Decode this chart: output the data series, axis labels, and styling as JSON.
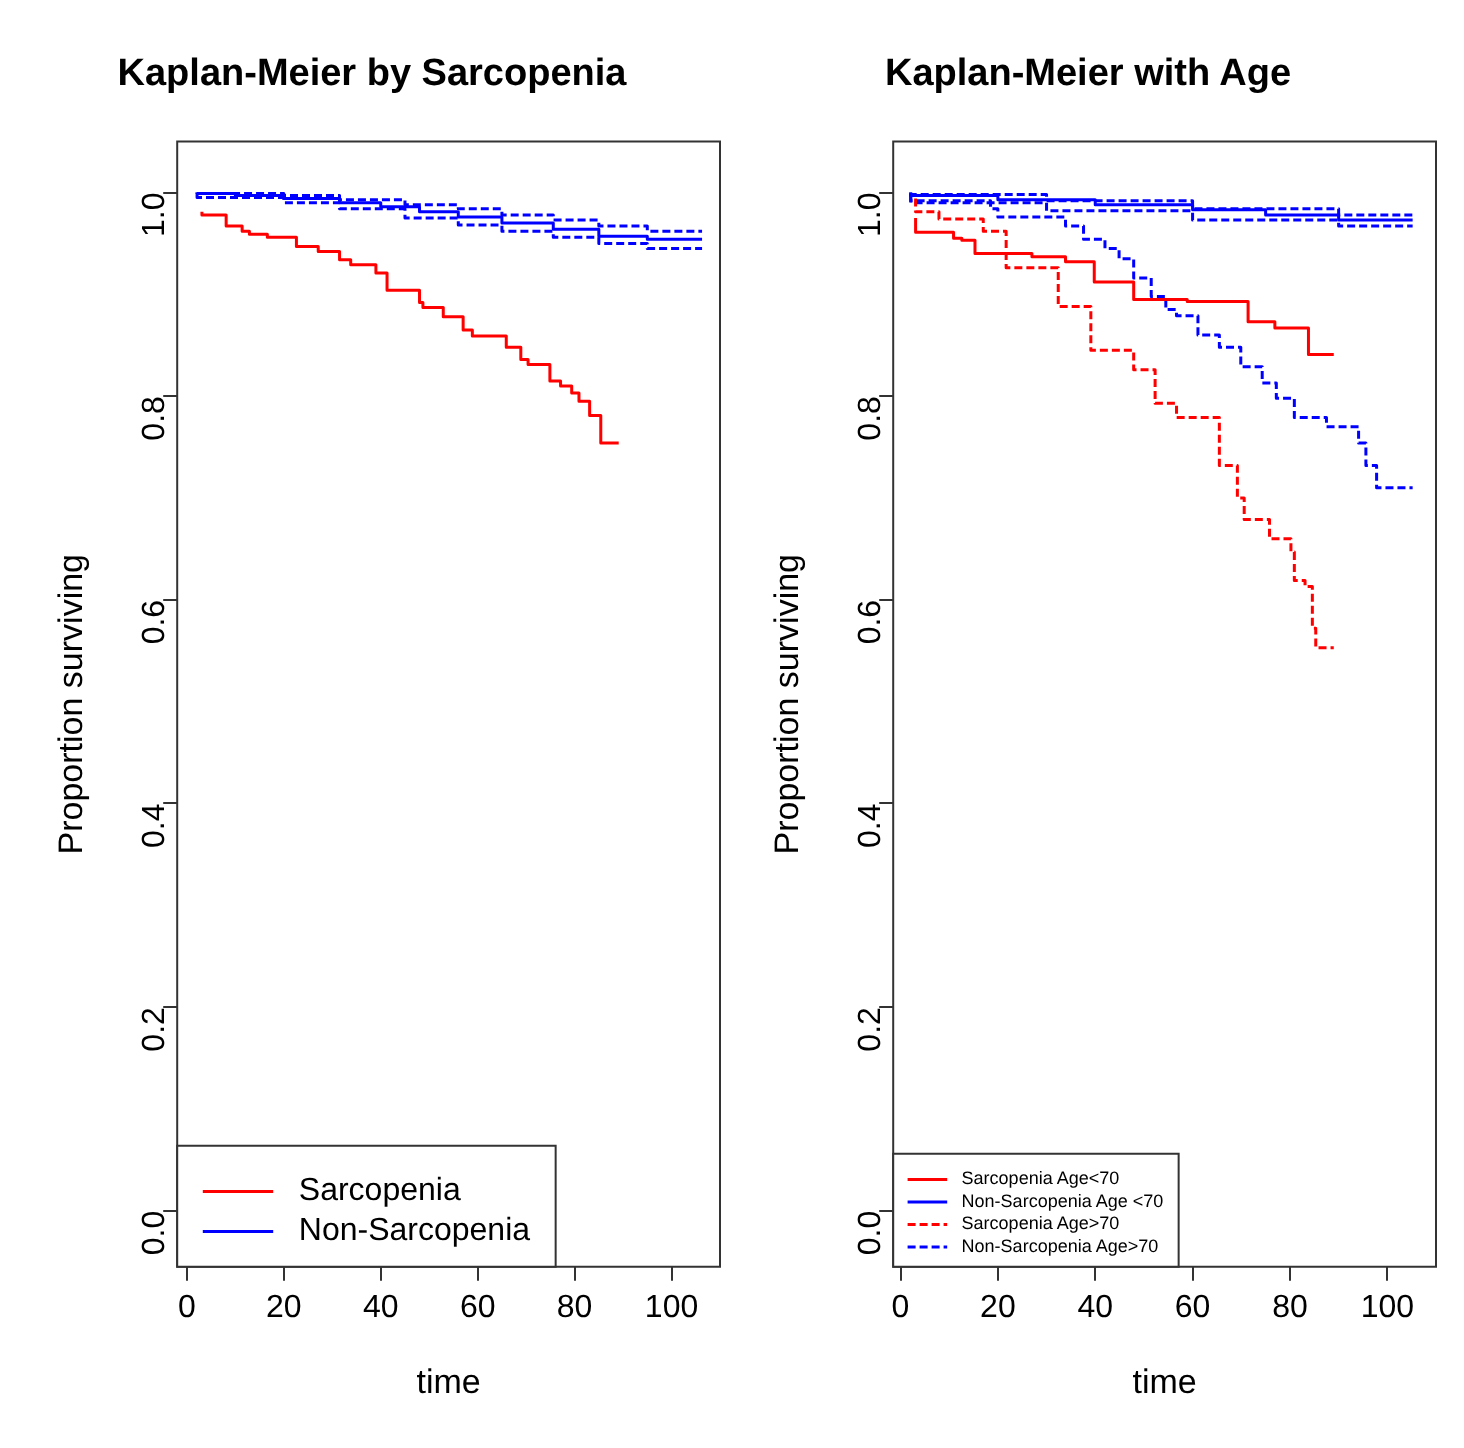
{
  "chart_data": [
    {
      "type": "step",
      "title": "Kaplan-Meier by Sarcopenia",
      "xlabel": "time",
      "ylabel": "Proportion surviving",
      "xlim": [
        -2,
        110
      ],
      "xticks": [
        0,
        20,
        40,
        60,
        80,
        100
      ],
      "ylim": [
        -0.055,
        1.05
      ],
      "yticks": [
        {
          "value": 0,
          "label": "0.0"
        },
        {
          "value": 0.2,
          "label": "0.2"
        },
        {
          "value": 0.4,
          "label": "0.4"
        },
        {
          "value": 0.6,
          "label": "0.6"
        },
        {
          "value": 0.8,
          "label": "0.8"
        },
        {
          "value": 1,
          "label": "1.0"
        }
      ],
      "grid": false,
      "legend": "bottom left",
      "series": [
        {
          "name": "Sarcopenia",
          "color": "#ff0000",
          "line_style": "solid",
          "x": [
            3.1,
            8.1,
            11.4,
            12.9,
            16.6,
            22.6,
            27.1,
            31.5,
            33.8,
            39.0,
            41.3,
            48.0,
            48.7,
            52.9,
            57.0,
            58.9,
            65.9,
            68.9,
            70.4,
            74.9,
            77.1,
            79.4,
            80.9,
            83.1,
            85.4,
            89.1
          ],
          "values": [
            0.981,
            0.978,
            0.967,
            0.962,
            0.959,
            0.956,
            0.947,
            0.942,
            0.934,
            0.929,
            0.921,
            0.904,
            0.892,
            0.887,
            0.878,
            0.865,
            0.859,
            0.848,
            0.836,
            0.831,
            0.815,
            0.81,
            0.803,
            0.795,
            0.781,
            0.754
          ]
        },
        {
          "name": "Non-Sarcopenia",
          "color": "#0000ff",
          "line_style": "solid",
          "x": [
            2.1,
            10,
            20,
            31.5,
            40,
            48,
            56,
            65,
            75.6,
            85,
            95,
            106.3
          ],
          "values": [
            1.0,
            0.999,
            0.997,
            0.994,
            0.99,
            0.986,
            0.981,
            0.976,
            0.97,
            0.964,
            0.957,
            0.954
          ]
        },
        {
          "color": "#0000ff",
          "line_style": "dashed",
          "x": [
            2.1,
            20,
            31.5,
            45,
            56,
            65,
            75.6,
            85,
            95,
            106.3
          ],
          "values": [
            1.0,
            0.999,
            0.997,
            0.993,
            0.988,
            0.984,
            0.978,
            0.973,
            0.967,
            0.962
          ]
        },
        {
          "color": "#0000ff",
          "line_style": "dashed",
          "x": [
            2.1,
            20,
            31.5,
            45,
            56,
            65,
            75.6,
            85,
            95,
            106.3
          ],
          "values": [
            0.998,
            0.995,
            0.99,
            0.984,
            0.975,
            0.968,
            0.962,
            0.956,
            0.95,
            0.945
          ]
        }
      ]
    },
    {
      "type": "step",
      "title": "Kaplan-Meier with Age",
      "xlabel": "time",
      "ylabel": "Proportion surviving",
      "xlim": [
        -1.5,
        110
      ],
      "xticks": [
        0,
        20,
        40,
        60,
        80,
        100
      ],
      "ylim": [
        -0.055,
        1.05
      ],
      "yticks": [
        {
          "value": 0,
          "label": "0.0"
        },
        {
          "value": 0.2,
          "label": "0.2"
        },
        {
          "value": 0.4,
          "label": "0.4"
        },
        {
          "value": 0.6,
          "label": "0.6"
        },
        {
          "value": 0.8,
          "label": "0.8"
        },
        {
          "value": 1,
          "label": "1.0"
        }
      ],
      "grid": false,
      "legend": "bottom left",
      "series": [
        {
          "name": "Sarcopenia Age<70",
          "color": "#ff0000",
          "line_style": "solid",
          "x": [
            3.1,
            10.9,
            12.6,
            15.3,
            27.0,
            33.9,
            39.8,
            47.9,
            58.9,
            71.4,
            76.9,
            83.8,
            89.0
          ],
          "values": [
            0.975,
            0.961,
            0.955,
            0.953,
            0.94,
            0.937,
            0.932,
            0.912,
            0.895,
            0.893,
            0.873,
            0.867,
            0.841
          ]
        },
        {
          "name": "Non-Sarcopenia Age <70",
          "color": "#0000ff",
          "line_style": "solid",
          "x": [
            2.1,
            20,
            40,
            60,
            75,
            90,
            105.2
          ],
          "values": [
            1.0,
            0.997,
            0.993,
            0.988,
            0.983,
            0.978,
            0.973
          ]
        },
        {
          "name": "Sarcopenia Age>70",
          "color": "#ff0000",
          "line_style": "dashed",
          "x": [
            3.1,
            7.9,
            17.0,
            21.7,
            32.4,
            39.1,
            47.9,
            52.3,
            56.7,
            65.5,
            69.2,
            70.6,
            75.8,
            80.2,
            80.9,
            83.1,
            84.6,
            85.3,
            89.0
          ],
          "values": [
            0.994,
            0.981,
            0.974,
            0.962,
            0.926,
            0.888,
            0.845,
            0.826,
            0.793,
            0.779,
            0.732,
            0.7,
            0.679,
            0.66,
            0.647,
            0.619,
            0.613,
            0.572,
            0.553
          ]
        },
        {
          "name": "Non-Sarcopenia Age>70",
          "color": "#0000ff",
          "line_style": "dashed",
          "x": [
            2.1,
            18.5,
            20.0,
            33.9,
            37.6,
            42.0,
            44.9,
            47.9,
            51.5,
            54.5,
            56.7,
            61.1,
            65.5,
            69.9,
            74.3,
            77.2,
            80.9,
            87.5,
            94.1,
            95.6,
            97.8,
            105.2
          ],
          "values": [
            0.998,
            0.992,
            0.984,
            0.976,
            0.967,
            0.954,
            0.945,
            0.935,
            0.916,
            0.898,
            0.885,
            0.879,
            0.86,
            0.848,
            0.829,
            0.813,
            0.798,
            0.779,
            0.77,
            0.754,
            0.732,
            0.71
          ]
        },
        {
          "color": "#0000ff",
          "line_style": "dashed",
          "x": [
            2.1,
            30,
            60,
            90,
            105.2
          ],
          "values": [
            1.0,
            0.998,
            0.992,
            0.984,
            0.978
          ]
        },
        {
          "color": "#0000ff",
          "line_style": "dashed",
          "x": [
            2.1,
            30,
            60,
            90,
            105.2
          ],
          "values": [
            0.998,
            0.99,
            0.982,
            0.973,
            0.967
          ]
        }
      ]
    }
  ]
}
